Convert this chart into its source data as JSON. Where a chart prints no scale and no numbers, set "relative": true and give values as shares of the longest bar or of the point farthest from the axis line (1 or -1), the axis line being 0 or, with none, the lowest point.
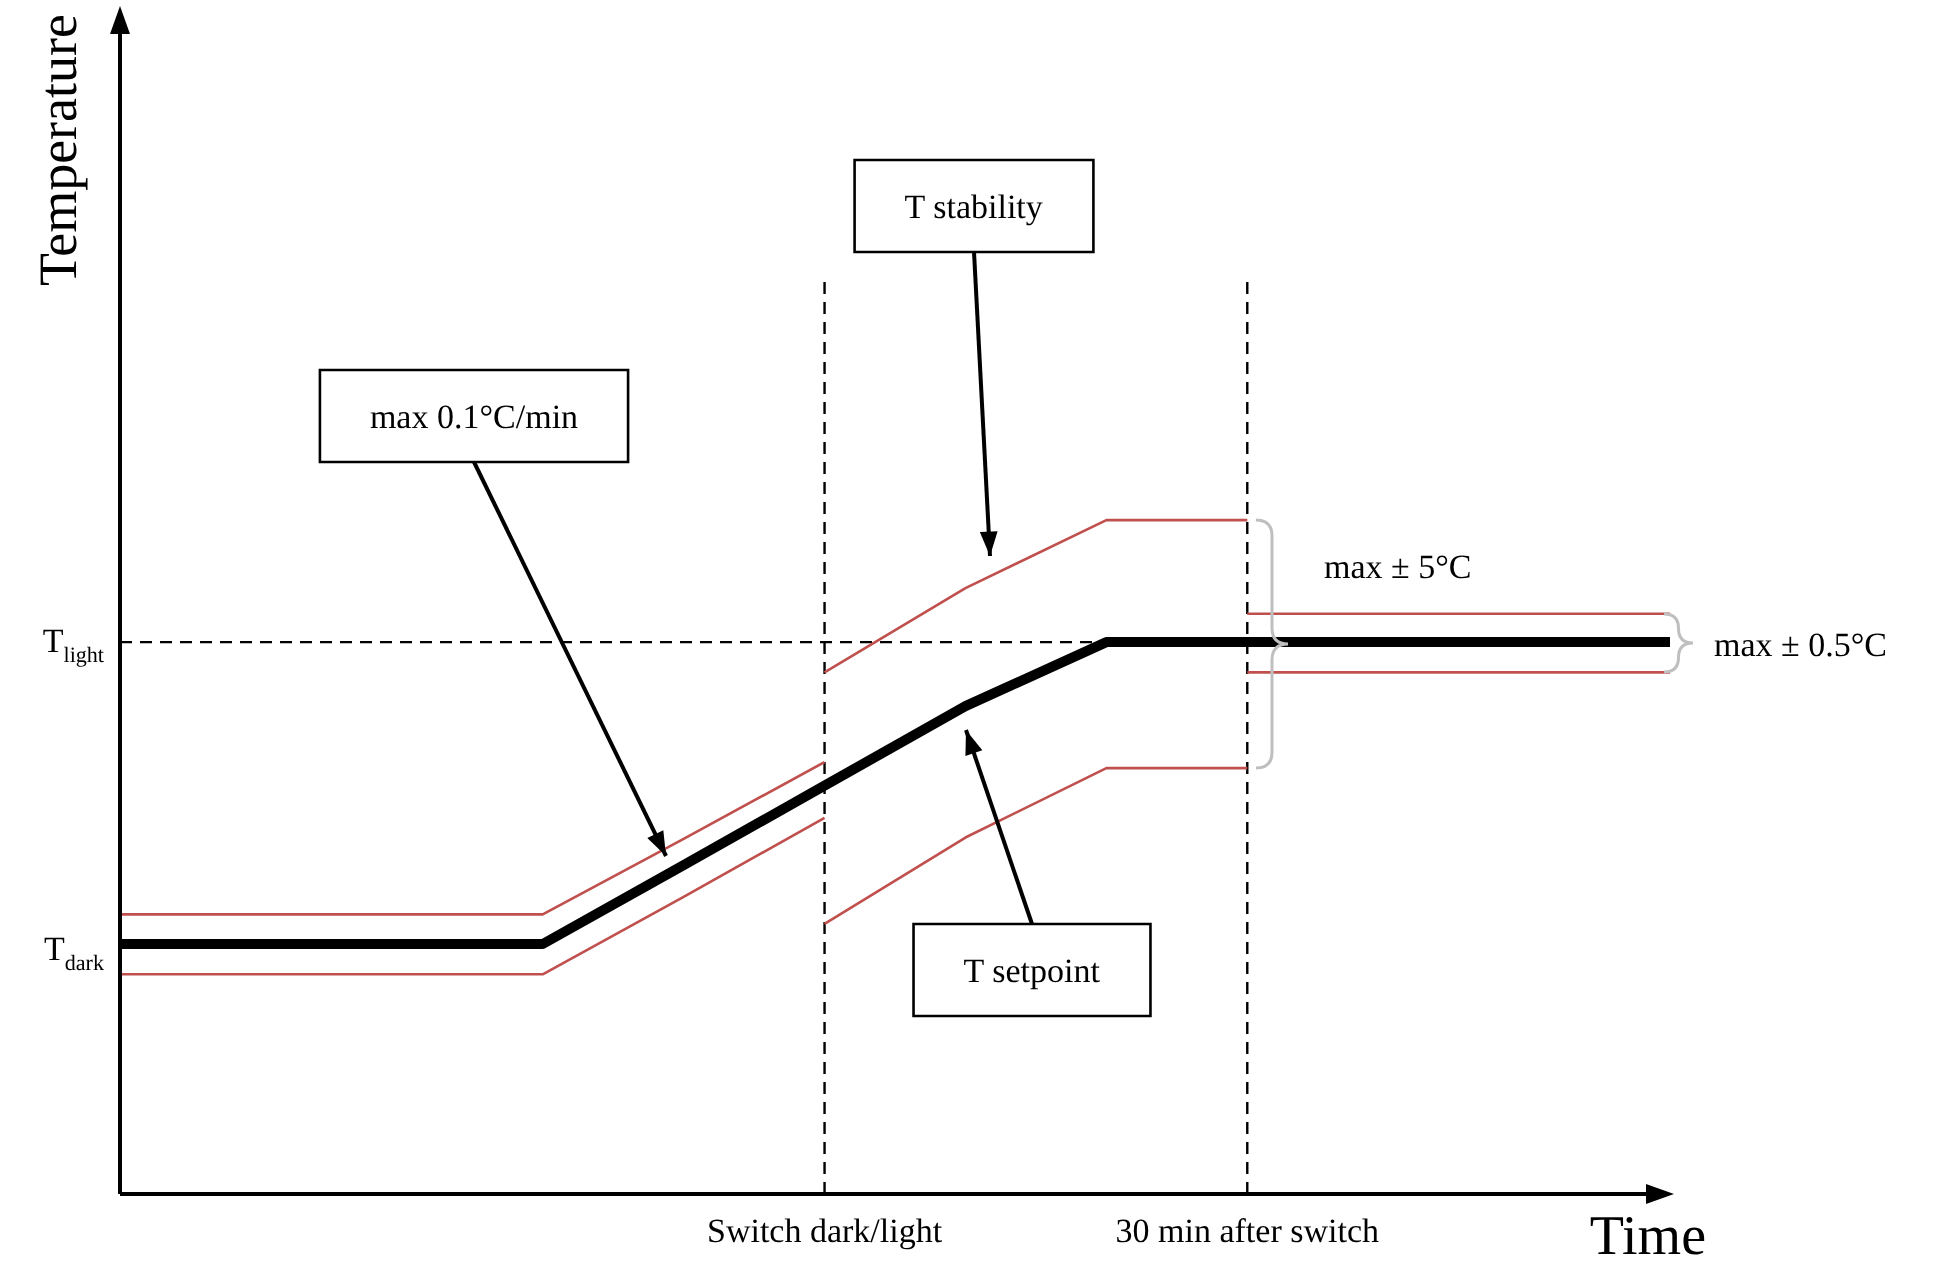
{
  "chart_data": {
    "type": "line",
    "relative": true,
    "ylabel": "Temperature",
    "xlabel": "Time",
    "legend": false,
    "marker": "none",
    "line_style": "solid",
    "categories": [
      null,
      null,
      null,
      null,
      null,
      "Switch dark/light",
      null,
      null,
      "30 min after switch",
      null,
      null,
      null
    ],
    "series": [
      {
        "color": "#000000",
        "values": [
          0.371,
          0.371,
          0.371,
          0.371,
          0.488,
          0.606,
          0.724,
          0.819,
          0.819,
          0.819,
          0.819,
          0.819
        ]
      },
      {
        "color": "#c0504d",
        "values": [
          0.415,
          0.415,
          0.415,
          0.415,
          0.527,
          0.641,
          null,
          null,
          null,
          null,
          null,
          null
        ]
      },
      {
        "color": "#c0504d",
        "values": [
          null,
          null,
          null,
          null,
          null,
          0.774,
          0.899,
          1,
          1,
          null,
          null,
          null
        ]
      },
      {
        "color": "#c0504d",
        "values": [
          null,
          null,
          null,
          null,
          null,
          null,
          null,
          null,
          0.861,
          0.861,
          0.861,
          0.861
        ]
      },
      {
        "color": "#c0504d",
        "values": [
          0.326,
          0.326,
          0.326,
          0.326,
          0.441,
          0.558,
          null,
          null,
          null,
          null,
          null,
          null
        ]
      },
      {
        "color": "#c0504d",
        "values": [
          null,
          null,
          null,
          null,
          null,
          0.401,
          0.529,
          0.632,
          0.632,
          null,
          null,
          null
        ]
      },
      {
        "color": "#c0504d",
        "values": [
          null,
          null,
          null,
          null,
          null,
          null,
          null,
          null,
          0.774,
          0.774,
          0.774,
          0.774
        ]
      }
    ],
    "ref_lines": [
      {
        "axis": "y",
        "value": 0.819,
        "label": "T$_{light}$",
        "line_style": "dashed",
        "color": "#000000"
      },
      {
        "axis": "x",
        "value": "Switch dark/light",
        "line_style": "dashed",
        "color": "#000000"
      },
      {
        "axis": "x",
        "value": "30 min after switch",
        "line_style": "dashed",
        "color": "#000000"
      }
    ],
    "annotations": [
      "T stability",
      "max 0.1°C/min",
      "T setpoint",
      "max ± 5°C",
      "max ± 0.5°C",
      "T$_{dark}$"
    ]
  }
}
